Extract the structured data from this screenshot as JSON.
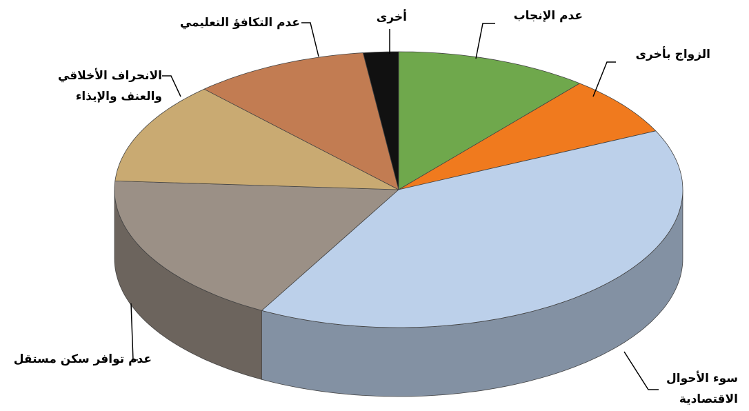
{
  "chart_data": {
    "type": "pie3d",
    "categories": [
      "عدم الإنجاب",
      "الزواج بأخرى",
      "سوء الأحوال الاقتصادية",
      "عدم توافر سكن مستقل",
      "الانحراف الأخلاقي والعنف والإيذاء",
      "عدم التكافؤ التعليمي",
      "أخرى"
    ],
    "values": [
      11,
      7,
      40,
      18,
      12,
      10,
      2
    ],
    "colors": [
      "#6fa84c",
      "#f07a1e",
      "#bcd0ea",
      "#9b9086",
      "#c9aa72",
      "#c27c52",
      "#111111"
    ]
  }
}
